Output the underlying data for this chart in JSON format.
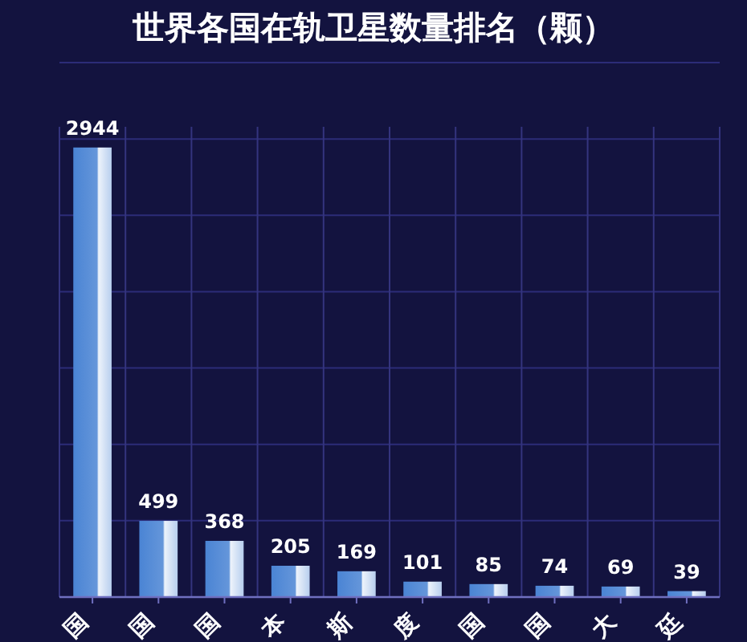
{
  "chart_data": {
    "type": "bar",
    "title": "世界各国在轨卫星数量排名（颗）",
    "categories": [
      "国",
      "国",
      "国",
      "本",
      "斯",
      "度",
      "国",
      "国",
      "大",
      "廷"
    ],
    "values": [
      2944,
      499,
      368,
      205,
      169,
      101,
      85,
      74,
      69,
      39
    ],
    "color": "#4a84d4",
    "ylim": [
      0,
      3500
    ],
    "yticks": [
      {
        "value": 0,
        "label": null
      },
      {
        "value": 500,
        "label": null
      },
      {
        "value": 1000,
        "label": null
      },
      {
        "value": 1500,
        "label": null
      },
      {
        "value": 2000,
        "label": null
      },
      {
        "value": 2500,
        "label": null
      },
      {
        "value": 3000,
        "label": null
      },
      {
        "value": 3500,
        "label": null
      }
    ],
    "grid": true,
    "data_labels": true
  }
}
